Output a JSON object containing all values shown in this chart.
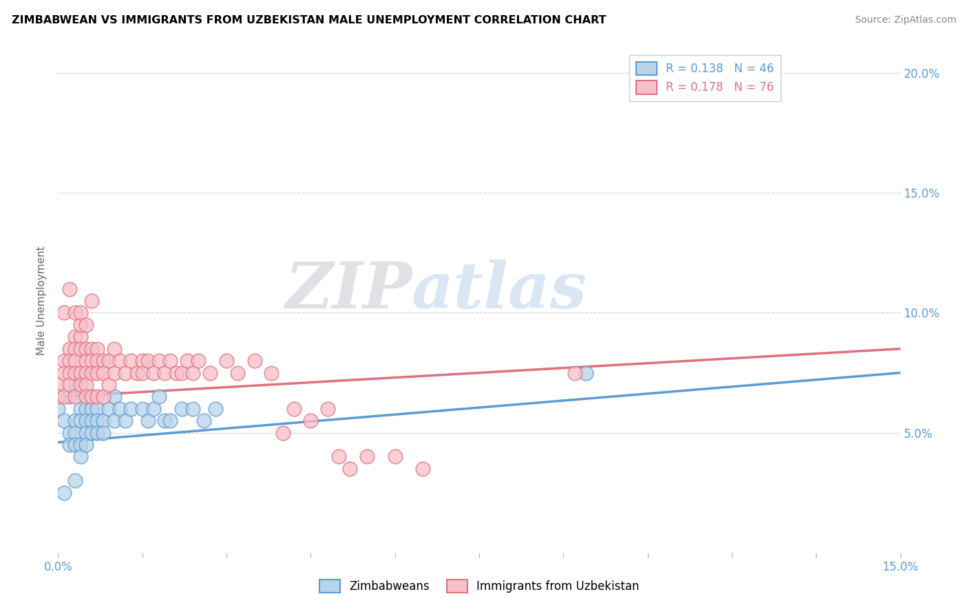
{
  "title": "ZIMBABWEAN VS IMMIGRANTS FROM UZBEKISTAN MALE UNEMPLOYMENT CORRELATION CHART",
  "source": "Source: ZipAtlas.com",
  "ylabel": "Male Unemployment",
  "y_ticks_right": [
    0.05,
    0.1,
    0.15,
    0.2
  ],
  "y_tick_labels_right": [
    "5.0%",
    "10.0%",
    "15.0%",
    "20.0%"
  ],
  "xlim": [
    0.0,
    0.15
  ],
  "ylim": [
    0.0,
    0.21
  ],
  "color_blue_fill": "#b8d4ea",
  "color_blue_edge": "#5b9bd5",
  "color_pink_fill": "#f8c0c8",
  "color_pink_edge": "#e07080",
  "trend_blue": "#5b9bd5",
  "trend_pink": "#e07080",
  "watermark_zip": "ZIP",
  "watermark_atlas": "atlas",
  "blue_x": [
    0.0,
    0.001,
    0.002,
    0.002,
    0.002,
    0.003,
    0.003,
    0.003,
    0.003,
    0.004,
    0.004,
    0.004,
    0.004,
    0.005,
    0.005,
    0.005,
    0.005,
    0.005,
    0.006,
    0.006,
    0.006,
    0.006,
    0.007,
    0.007,
    0.007,
    0.008,
    0.008,
    0.009,
    0.01,
    0.01,
    0.011,
    0.012,
    0.013,
    0.015,
    0.016,
    0.017,
    0.018,
    0.019,
    0.02,
    0.022,
    0.024,
    0.026,
    0.028,
    0.094,
    0.001,
    0.003
  ],
  "blue_y": [
    0.06,
    0.055,
    0.065,
    0.05,
    0.045,
    0.07,
    0.055,
    0.05,
    0.045,
    0.06,
    0.055,
    0.045,
    0.04,
    0.065,
    0.06,
    0.055,
    0.05,
    0.045,
    0.065,
    0.06,
    0.055,
    0.05,
    0.06,
    0.055,
    0.05,
    0.055,
    0.05,
    0.06,
    0.065,
    0.055,
    0.06,
    0.055,
    0.06,
    0.06,
    0.055,
    0.06,
    0.065,
    0.055,
    0.055,
    0.06,
    0.06,
    0.055,
    0.06,
    0.075,
    0.025,
    0.03
  ],
  "pink_x": [
    0.0,
    0.0,
    0.001,
    0.001,
    0.001,
    0.002,
    0.002,
    0.002,
    0.002,
    0.003,
    0.003,
    0.003,
    0.003,
    0.003,
    0.004,
    0.004,
    0.004,
    0.004,
    0.005,
    0.005,
    0.005,
    0.005,
    0.005,
    0.006,
    0.006,
    0.006,
    0.006,
    0.007,
    0.007,
    0.007,
    0.007,
    0.008,
    0.008,
    0.008,
    0.009,
    0.009,
    0.01,
    0.01,
    0.011,
    0.012,
    0.013,
    0.014,
    0.015,
    0.015,
    0.016,
    0.017,
    0.018,
    0.019,
    0.02,
    0.021,
    0.022,
    0.023,
    0.024,
    0.025,
    0.027,
    0.03,
    0.032,
    0.035,
    0.038,
    0.04,
    0.042,
    0.045,
    0.048,
    0.05,
    0.052,
    0.055,
    0.06,
    0.065,
    0.092,
    0.001,
    0.002,
    0.003,
    0.004,
    0.004,
    0.005,
    0.006
  ],
  "pink_y": [
    0.07,
    0.065,
    0.08,
    0.075,
    0.065,
    0.085,
    0.08,
    0.075,
    0.07,
    0.09,
    0.085,
    0.08,
    0.075,
    0.065,
    0.09,
    0.085,
    0.075,
    0.07,
    0.085,
    0.08,
    0.075,
    0.07,
    0.065,
    0.085,
    0.08,
    0.075,
    0.065,
    0.085,
    0.08,
    0.075,
    0.065,
    0.08,
    0.075,
    0.065,
    0.08,
    0.07,
    0.085,
    0.075,
    0.08,
    0.075,
    0.08,
    0.075,
    0.08,
    0.075,
    0.08,
    0.075,
    0.08,
    0.075,
    0.08,
    0.075,
    0.075,
    0.08,
    0.075,
    0.08,
    0.075,
    0.08,
    0.075,
    0.08,
    0.075,
    0.05,
    0.06,
    0.055,
    0.06,
    0.04,
    0.035,
    0.04,
    0.04,
    0.035,
    0.075,
    0.1,
    0.11,
    0.1,
    0.095,
    0.1,
    0.095,
    0.105
  ],
  "trend_blue_x0": 0.0,
  "trend_blue_y0": 0.046,
  "trend_blue_x1": 0.15,
  "trend_blue_y1": 0.075,
  "trend_pink_x0": 0.0,
  "trend_pink_y0": 0.065,
  "trend_pink_x1": 0.15,
  "trend_pink_y1": 0.085
}
